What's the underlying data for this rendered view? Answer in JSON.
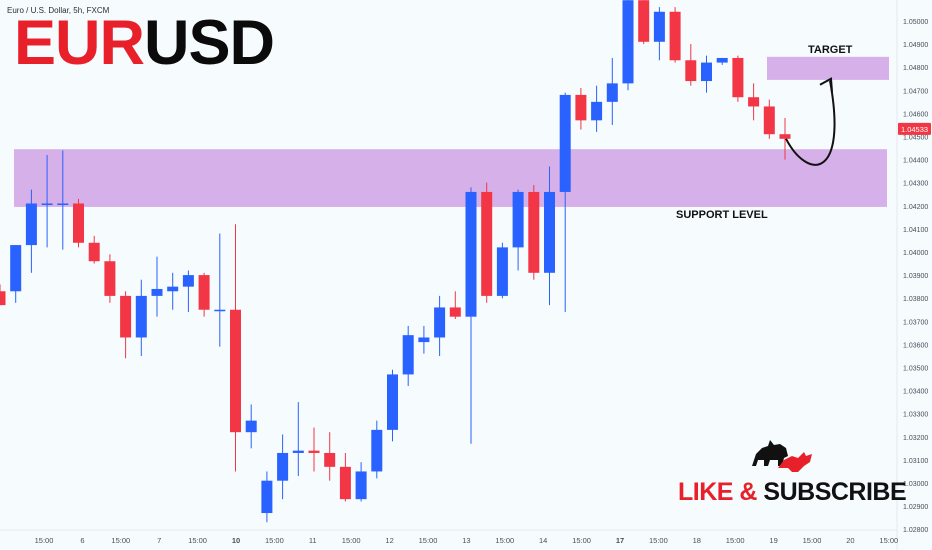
{
  "header": {
    "series_title": "Euro / U.S. Dollar, 5h, FXCM",
    "title_part1": "EUR",
    "title_part2": "USD"
  },
  "annotations": {
    "target_label": "TARGET",
    "support_label": "SUPPORT LEVEL"
  },
  "branding": {
    "like_label": "LIKE &",
    "subscribe_label": "SUBSCRIBE",
    "logo_icon": "bull-bear-icon"
  },
  "colors": {
    "up": "#2962ff",
    "down": "#f23645",
    "zone": "#ce9ee2",
    "price_tag": "#f23645",
    "title_red": "#e8202a"
  },
  "chart_data": {
    "type": "candlestick",
    "symbol": "EURUSD",
    "interval": "5h",
    "ylim": [
      1.0275,
      1.0515
    ],
    "y_ticks": [
      "1.05000",
      "1.04900",
      "1.04800",
      "1.04700",
      "1.04600",
      "1.04500",
      "1.04400",
      "1.04300",
      "1.04200",
      "1.04100",
      "1.04000",
      "1.03900",
      "1.03800",
      "1.03700",
      "1.03600",
      "1.03500",
      "1.03400",
      "1.03300",
      "1.03200",
      "1.03100",
      "1.03000",
      "1.02900",
      "1.02800"
    ],
    "x_ticks": [
      "15:00",
      "6",
      "15:00",
      "7",
      "15:00",
      "10",
      "15:00",
      "11",
      "15:00",
      "12",
      "15:00",
      "13",
      "15:00",
      "14",
      "15:00",
      "17",
      "15:00",
      "18",
      "15:00",
      "19",
      "15:00",
      "20",
      "15:00"
    ],
    "current_price": "1.04533",
    "candles": [
      {
        "o": 1.0383,
        "h": 1.0386,
        "l": 1.0377,
        "c": 1.0377
      },
      {
        "o": 1.0383,
        "h": 1.0403,
        "l": 1.0378,
        "c": 1.0403
      },
      {
        "o": 1.0403,
        "h": 1.0427,
        "l": 1.0391,
        "c": 1.0421
      },
      {
        "o": 1.0421,
        "h": 1.0442,
        "l": 1.0402,
        "c": 1.0421
      },
      {
        "o": 1.0421,
        "h": 1.0444,
        "l": 1.0401,
        "c": 1.0421
      },
      {
        "o": 1.0421,
        "h": 1.0423,
        "l": 1.0402,
        "c": 1.0404
      },
      {
        "o": 1.0404,
        "h": 1.0407,
        "l": 1.0395,
        "c": 1.0396
      },
      {
        "o": 1.0396,
        "h": 1.0399,
        "l": 1.0378,
        "c": 1.0381
      },
      {
        "o": 1.0381,
        "h": 1.0383,
        "l": 1.0354,
        "c": 1.0363
      },
      {
        "o": 1.0363,
        "h": 1.0388,
        "l": 1.0355,
        "c": 1.0381
      },
      {
        "o": 1.0381,
        "h": 1.0398,
        "l": 1.0372,
        "c": 1.0384
      },
      {
        "o": 1.0383,
        "h": 1.0391,
        "l": 1.0375,
        "c": 1.0385
      },
      {
        "o": 1.0385,
        "h": 1.0392,
        "l": 1.0374,
        "c": 1.039
      },
      {
        "o": 1.039,
        "h": 1.0391,
        "l": 1.0372,
        "c": 1.0375
      },
      {
        "o": 1.0375,
        "h": 1.0408,
        "l": 1.0359,
        "c": 1.0375
      },
      {
        "o": 1.0375,
        "h": 1.0412,
        "l": 1.0305,
        "c": 1.0322
      },
      {
        "o": 1.0322,
        "h": 1.0334,
        "l": 1.0315,
        "c": 1.0327
      },
      {
        "o": 1.0287,
        "h": 1.0305,
        "l": 1.0283,
        "c": 1.0301
      },
      {
        "o": 1.0301,
        "h": 1.0321,
        "l": 1.0293,
        "c": 1.0313
      },
      {
        "o": 1.0313,
        "h": 1.0335,
        "l": 1.0303,
        "c": 1.0314
      },
      {
        "o": 1.0314,
        "h": 1.0324,
        "l": 1.0305,
        "c": 1.0313
      },
      {
        "o": 1.0313,
        "h": 1.0322,
        "l": 1.0301,
        "c": 1.0307
      },
      {
        "o": 1.0307,
        "h": 1.0313,
        "l": 1.0292,
        "c": 1.0293
      },
      {
        "o": 1.0293,
        "h": 1.0309,
        "l": 1.0292,
        "c": 1.0305
      },
      {
        "o": 1.0305,
        "h": 1.0327,
        "l": 1.0302,
        "c": 1.0323
      },
      {
        "o": 1.0323,
        "h": 1.0349,
        "l": 1.0318,
        "c": 1.0347
      },
      {
        "o": 1.0347,
        "h": 1.0368,
        "l": 1.0342,
        "c": 1.0364
      },
      {
        "o": 1.0361,
        "h": 1.0368,
        "l": 1.0356,
        "c": 1.0363
      },
      {
        "o": 1.0363,
        "h": 1.0381,
        "l": 1.0355,
        "c": 1.0376
      },
      {
        "o": 1.0376,
        "h": 1.0383,
        "l": 1.0371,
        "c": 1.0372
      },
      {
        "o": 1.0372,
        "h": 1.0428,
        "l": 1.0317,
        "c": 1.0426
      },
      {
        "o": 1.0426,
        "h": 1.043,
        "l": 1.0378,
        "c": 1.0381
      },
      {
        "o": 1.0381,
        "h": 1.0404,
        "l": 1.038,
        "c": 1.0402
      },
      {
        "o": 1.0402,
        "h": 1.0427,
        "l": 1.0392,
        "c": 1.0426
      },
      {
        "o": 1.0426,
        "h": 1.0429,
        "l": 1.0388,
        "c": 1.0391
      },
      {
        "o": 1.0391,
        "h": 1.0437,
        "l": 1.0377,
        "c": 1.0426
      },
      {
        "o": 1.0426,
        "h": 1.0469,
        "l": 1.0374,
        "c": 1.0468
      },
      {
        "o": 1.0468,
        "h": 1.0471,
        "l": 1.0453,
        "c": 1.0457
      },
      {
        "o": 1.0457,
        "h": 1.0472,
        "l": 1.0452,
        "c": 1.0465
      },
      {
        "o": 1.0465,
        "h": 1.0484,
        "l": 1.0455,
        "c": 1.0473
      },
      {
        "o": 1.0473,
        "h": 1.0514,
        "l": 1.047,
        "c": 1.0509
      },
      {
        "o": 1.0509,
        "h": 1.0509,
        "l": 1.049,
        "c": 1.0491
      },
      {
        "o": 1.0491,
        "h": 1.0506,
        "l": 1.0483,
        "c": 1.0504
      },
      {
        "o": 1.0504,
        "h": 1.0506,
        "l": 1.0482,
        "c": 1.0483
      },
      {
        "o": 1.0483,
        "h": 1.049,
        "l": 1.0472,
        "c": 1.0474
      },
      {
        "o": 1.0474,
        "h": 1.0485,
        "l": 1.0469,
        "c": 1.0482
      },
      {
        "o": 1.0482,
        "h": 1.0484,
        "l": 1.0481,
        "c": 1.0484
      },
      {
        "o": 1.0484,
        "h": 1.0485,
        "l": 1.0465,
        "c": 1.0467
      },
      {
        "o": 1.0467,
        "h": 1.0473,
        "l": 1.0457,
        "c": 1.0463
      },
      {
        "o": 1.0463,
        "h": 1.0466,
        "l": 1.0449,
        "c": 1.0451
      },
      {
        "o": 1.0451,
        "h": 1.0458,
        "l": 1.044,
        "c": 1.0449
      }
    ],
    "zones": [
      {
        "label": "SUPPORT LEVEL",
        "low": 1.04195,
        "high": 1.04445
      },
      {
        "label": "TARGET",
        "low": 1.04745,
        "high": 1.04845
      }
    ],
    "projection": "decline into support then rally toward target"
  }
}
